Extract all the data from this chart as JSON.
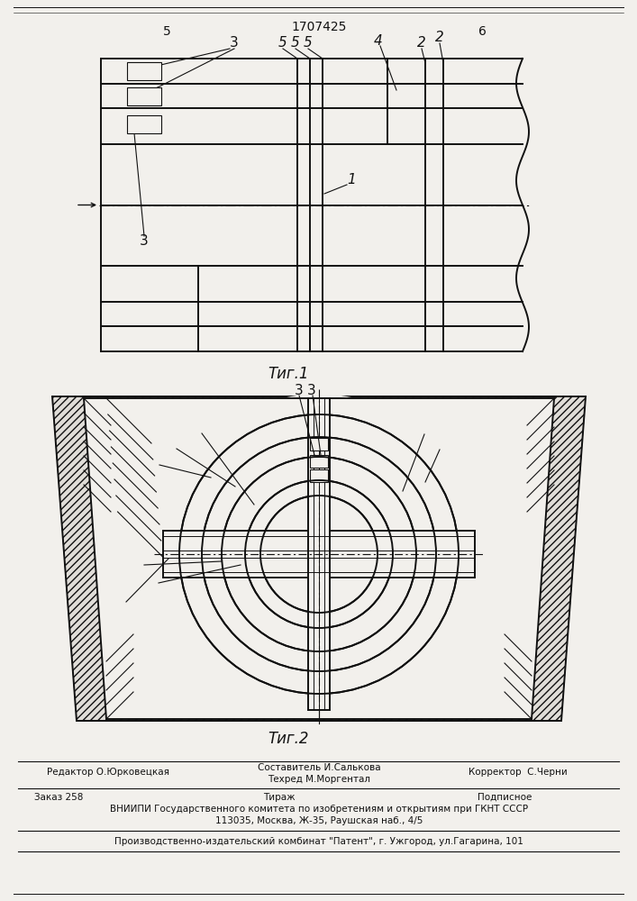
{
  "bg_color": "#f2f0ec",
  "line_color": "#111111",
  "title_text": "1707425",
  "fig1_label": "Τиг.1",
  "fig2_label": "Τиг.2",
  "page_left": "5",
  "page_right": "6",
  "footer_line1_left": "Редактор О.Юрковецкая",
  "footer_line1_center1": "Составитель И.Салькова",
  "footer_line1_center2": "Техред М.Моргентал",
  "footer_line1_right": "Корректор  С.Черни",
  "footer_line2_left": "Заказ 258",
  "footer_line2_center": "Тираж",
  "footer_line2_right": "Подписное",
  "footer_line3": "ВНИИПИ Государственного комитета по изобретениям и открытиям при ГКНТ СССР",
  "footer_line4": "113035, Москва, Ж-35, Раушская наб., 4/5",
  "footer_line5": "Производственно-издательский комбинат \"Патент\", г. Ужгород, ул.Гагарина, 101"
}
